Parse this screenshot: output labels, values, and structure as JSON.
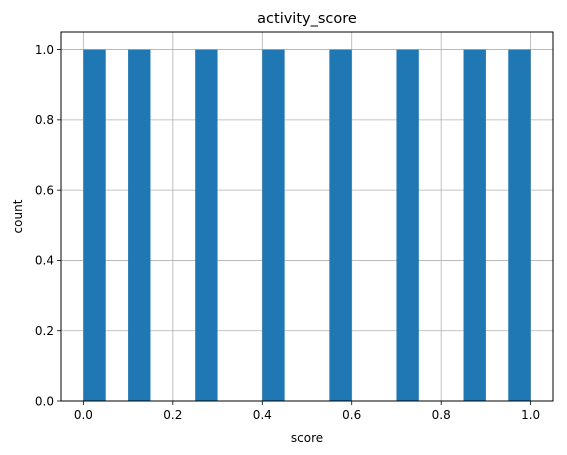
{
  "chart_data": {
    "type": "bar",
    "title": "activity_score",
    "xlabel": "score",
    "ylabel": "count",
    "bin_width": 0.05,
    "bins": [
      {
        "start": 0.0,
        "end": 0.05,
        "value": 1
      },
      {
        "start": 0.1,
        "end": 0.15,
        "value": 1
      },
      {
        "start": 0.25,
        "end": 0.3,
        "value": 1
      },
      {
        "start": 0.4,
        "end": 0.45,
        "value": 1
      },
      {
        "start": 0.55,
        "end": 0.6,
        "value": 1
      },
      {
        "start": 0.7,
        "end": 0.75,
        "value": 1
      },
      {
        "start": 0.85,
        "end": 0.9,
        "value": 1
      },
      {
        "start": 0.95,
        "end": 1.0,
        "value": 1
      }
    ],
    "xlim": [
      -0.05,
      1.05
    ],
    "ylim": [
      0,
      1.05
    ],
    "xticks": [
      "0.0",
      "0.2",
      "0.4",
      "0.6",
      "0.8",
      "1.0"
    ],
    "yticks": [
      "0.0",
      "0.2",
      "0.4",
      "0.6",
      "0.8",
      "1.0"
    ],
    "grid": true,
    "bar_color": "#1f77b4",
    "grid_color": "#b0b0b0"
  }
}
